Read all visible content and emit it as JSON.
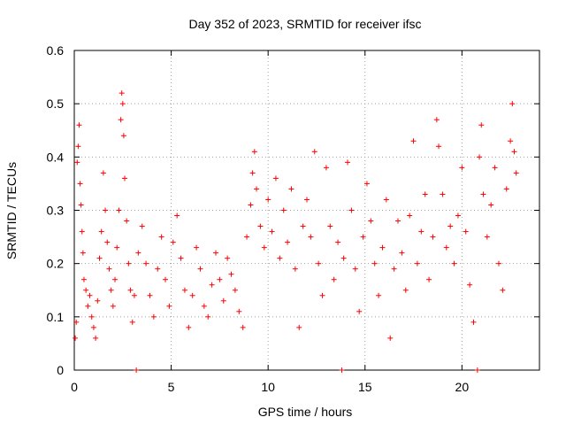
{
  "chart_data": {
    "type": "scatter",
    "title": "Day 352 of 2023, SRMTID for receiver ifsc",
    "xlabel": "GPS time / hours",
    "ylabel": "SRMTID / TECUs",
    "xlim": [
      0,
      24
    ],
    "ylim": [
      0,
      0.6
    ],
    "xticks": [
      0,
      5,
      10,
      15,
      20
    ],
    "xtick_labels": [
      "0",
      "5",
      "10",
      "15",
      "20"
    ],
    "yticks": [
      0,
      0.1,
      0.2,
      0.3,
      0.4,
      0.5,
      0.6
    ],
    "ytick_labels": [
      "0",
      "0.1",
      "0.2",
      "0.3",
      "0.4",
      "0.5",
      "0.6"
    ],
    "grid": true,
    "marker": "+",
    "series": [
      {
        "name": "SRMTID",
        "color": "#ff0000",
        "points": [
          [
            0.05,
            0.06
          ],
          [
            0.1,
            0.09
          ],
          [
            0.15,
            0.39
          ],
          [
            0.2,
            0.42
          ],
          [
            0.25,
            0.46
          ],
          [
            0.3,
            0.35
          ],
          [
            0.35,
            0.31
          ],
          [
            0.4,
            0.26
          ],
          [
            0.45,
            0.22
          ],
          [
            0.5,
            0.17
          ],
          [
            0.6,
            0.15
          ],
          [
            0.7,
            0.12
          ],
          [
            0.8,
            0.14
          ],
          [
            0.9,
            0.1
          ],
          [
            1.0,
            0.08
          ],
          [
            1.1,
            0.06
          ],
          [
            1.2,
            0.13
          ],
          [
            1.3,
            0.21
          ],
          [
            1.4,
            0.26
          ],
          [
            1.5,
            0.37
          ],
          [
            1.6,
            0.3
          ],
          [
            1.7,
            0.24
          ],
          [
            1.8,
            0.19
          ],
          [
            1.9,
            0.15
          ],
          [
            2.0,
            0.12
          ],
          [
            2.1,
            0.17
          ],
          [
            2.2,
            0.23
          ],
          [
            2.3,
            0.3
          ],
          [
            2.4,
            0.47
          ],
          [
            2.45,
            0.52
          ],
          [
            2.5,
            0.5
          ],
          [
            2.55,
            0.44
          ],
          [
            2.6,
            0.36
          ],
          [
            2.7,
            0.28
          ],
          [
            2.8,
            0.2
          ],
          [
            2.9,
            0.15
          ],
          [
            3.0,
            0.09
          ],
          [
            3.1,
            0.14
          ],
          [
            3.2,
            0.0
          ],
          [
            3.3,
            0.22
          ],
          [
            3.5,
            0.27
          ],
          [
            3.7,
            0.2
          ],
          [
            3.9,
            0.14
          ],
          [
            4.1,
            0.1
          ],
          [
            4.3,
            0.19
          ],
          [
            4.5,
            0.25
          ],
          [
            4.7,
            0.17
          ],
          [
            4.9,
            0.12
          ],
          [
            5.1,
            0.24
          ],
          [
            5.3,
            0.29
          ],
          [
            5.5,
            0.21
          ],
          [
            5.7,
            0.15
          ],
          [
            5.9,
            0.08
          ],
          [
            6.1,
            0.14
          ],
          [
            6.3,
            0.23
          ],
          [
            6.5,
            0.19
          ],
          [
            6.7,
            0.12
          ],
          [
            6.9,
            0.1
          ],
          [
            7.1,
            0.16
          ],
          [
            7.3,
            0.22
          ],
          [
            7.5,
            0.17
          ],
          [
            7.7,
            0.13
          ],
          [
            7.9,
            0.21
          ],
          [
            8.1,
            0.18
          ],
          [
            8.3,
            0.15
          ],
          [
            8.5,
            0.11
          ],
          [
            8.7,
            0.08
          ],
          [
            8.9,
            0.25
          ],
          [
            9.1,
            0.31
          ],
          [
            9.2,
            0.37
          ],
          [
            9.3,
            0.41
          ],
          [
            9.4,
            0.34
          ],
          [
            9.6,
            0.27
          ],
          [
            9.8,
            0.23
          ],
          [
            10.0,
            0.32
          ],
          [
            10.2,
            0.26
          ],
          [
            10.4,
            0.36
          ],
          [
            10.6,
            0.21
          ],
          [
            10.8,
            0.3
          ],
          [
            11.0,
            0.24
          ],
          [
            11.2,
            0.34
          ],
          [
            11.4,
            0.19
          ],
          [
            11.6,
            0.08
          ],
          [
            11.8,
            0.27
          ],
          [
            12.0,
            0.32
          ],
          [
            12.2,
            0.25
          ],
          [
            12.4,
            0.41
          ],
          [
            12.6,
            0.2
          ],
          [
            12.8,
            0.14
          ],
          [
            13.0,
            0.38
          ],
          [
            13.2,
            0.27
          ],
          [
            13.4,
            0.17
          ],
          [
            13.6,
            0.24
          ],
          [
            13.8,
            0.0
          ],
          [
            13.9,
            0.21
          ],
          [
            14.1,
            0.39
          ],
          [
            14.3,
            0.3
          ],
          [
            14.5,
            0.19
          ],
          [
            14.7,
            0.11
          ],
          [
            14.9,
            0.25
          ],
          [
            15.1,
            0.35
          ],
          [
            15.3,
            0.28
          ],
          [
            15.5,
            0.2
          ],
          [
            15.7,
            0.14
          ],
          [
            15.9,
            0.23
          ],
          [
            16.1,
            0.32
          ],
          [
            16.3,
            0.06
          ],
          [
            16.5,
            0.19
          ],
          [
            16.7,
            0.28
          ],
          [
            16.9,
            0.22
          ],
          [
            17.1,
            0.15
          ],
          [
            17.3,
            0.29
          ],
          [
            17.5,
            0.43
          ],
          [
            17.7,
            0.2
          ],
          [
            17.9,
            0.26
          ],
          [
            18.1,
            0.33
          ],
          [
            18.3,
            0.17
          ],
          [
            18.5,
            0.25
          ],
          [
            18.7,
            0.47
          ],
          [
            18.8,
            0.42
          ],
          [
            19.0,
            0.33
          ],
          [
            19.2,
            0.23
          ],
          [
            19.4,
            0.27
          ],
          [
            19.6,
            0.2
          ],
          [
            19.8,
            0.29
          ],
          [
            20.0,
            0.38
          ],
          [
            20.2,
            0.26
          ],
          [
            20.4,
            0.16
          ],
          [
            20.6,
            0.09
          ],
          [
            20.8,
            0.0
          ],
          [
            20.9,
            0.4
          ],
          [
            21.0,
            0.46
          ],
          [
            21.1,
            0.33
          ],
          [
            21.3,
            0.25
          ],
          [
            21.5,
            0.31
          ],
          [
            21.7,
            0.38
          ],
          [
            21.9,
            0.2
          ],
          [
            22.1,
            0.15
          ],
          [
            22.3,
            0.34
          ],
          [
            22.5,
            0.43
          ],
          [
            22.6,
            0.5
          ],
          [
            22.7,
            0.41
          ],
          [
            22.8,
            0.37
          ]
        ]
      }
    ]
  }
}
